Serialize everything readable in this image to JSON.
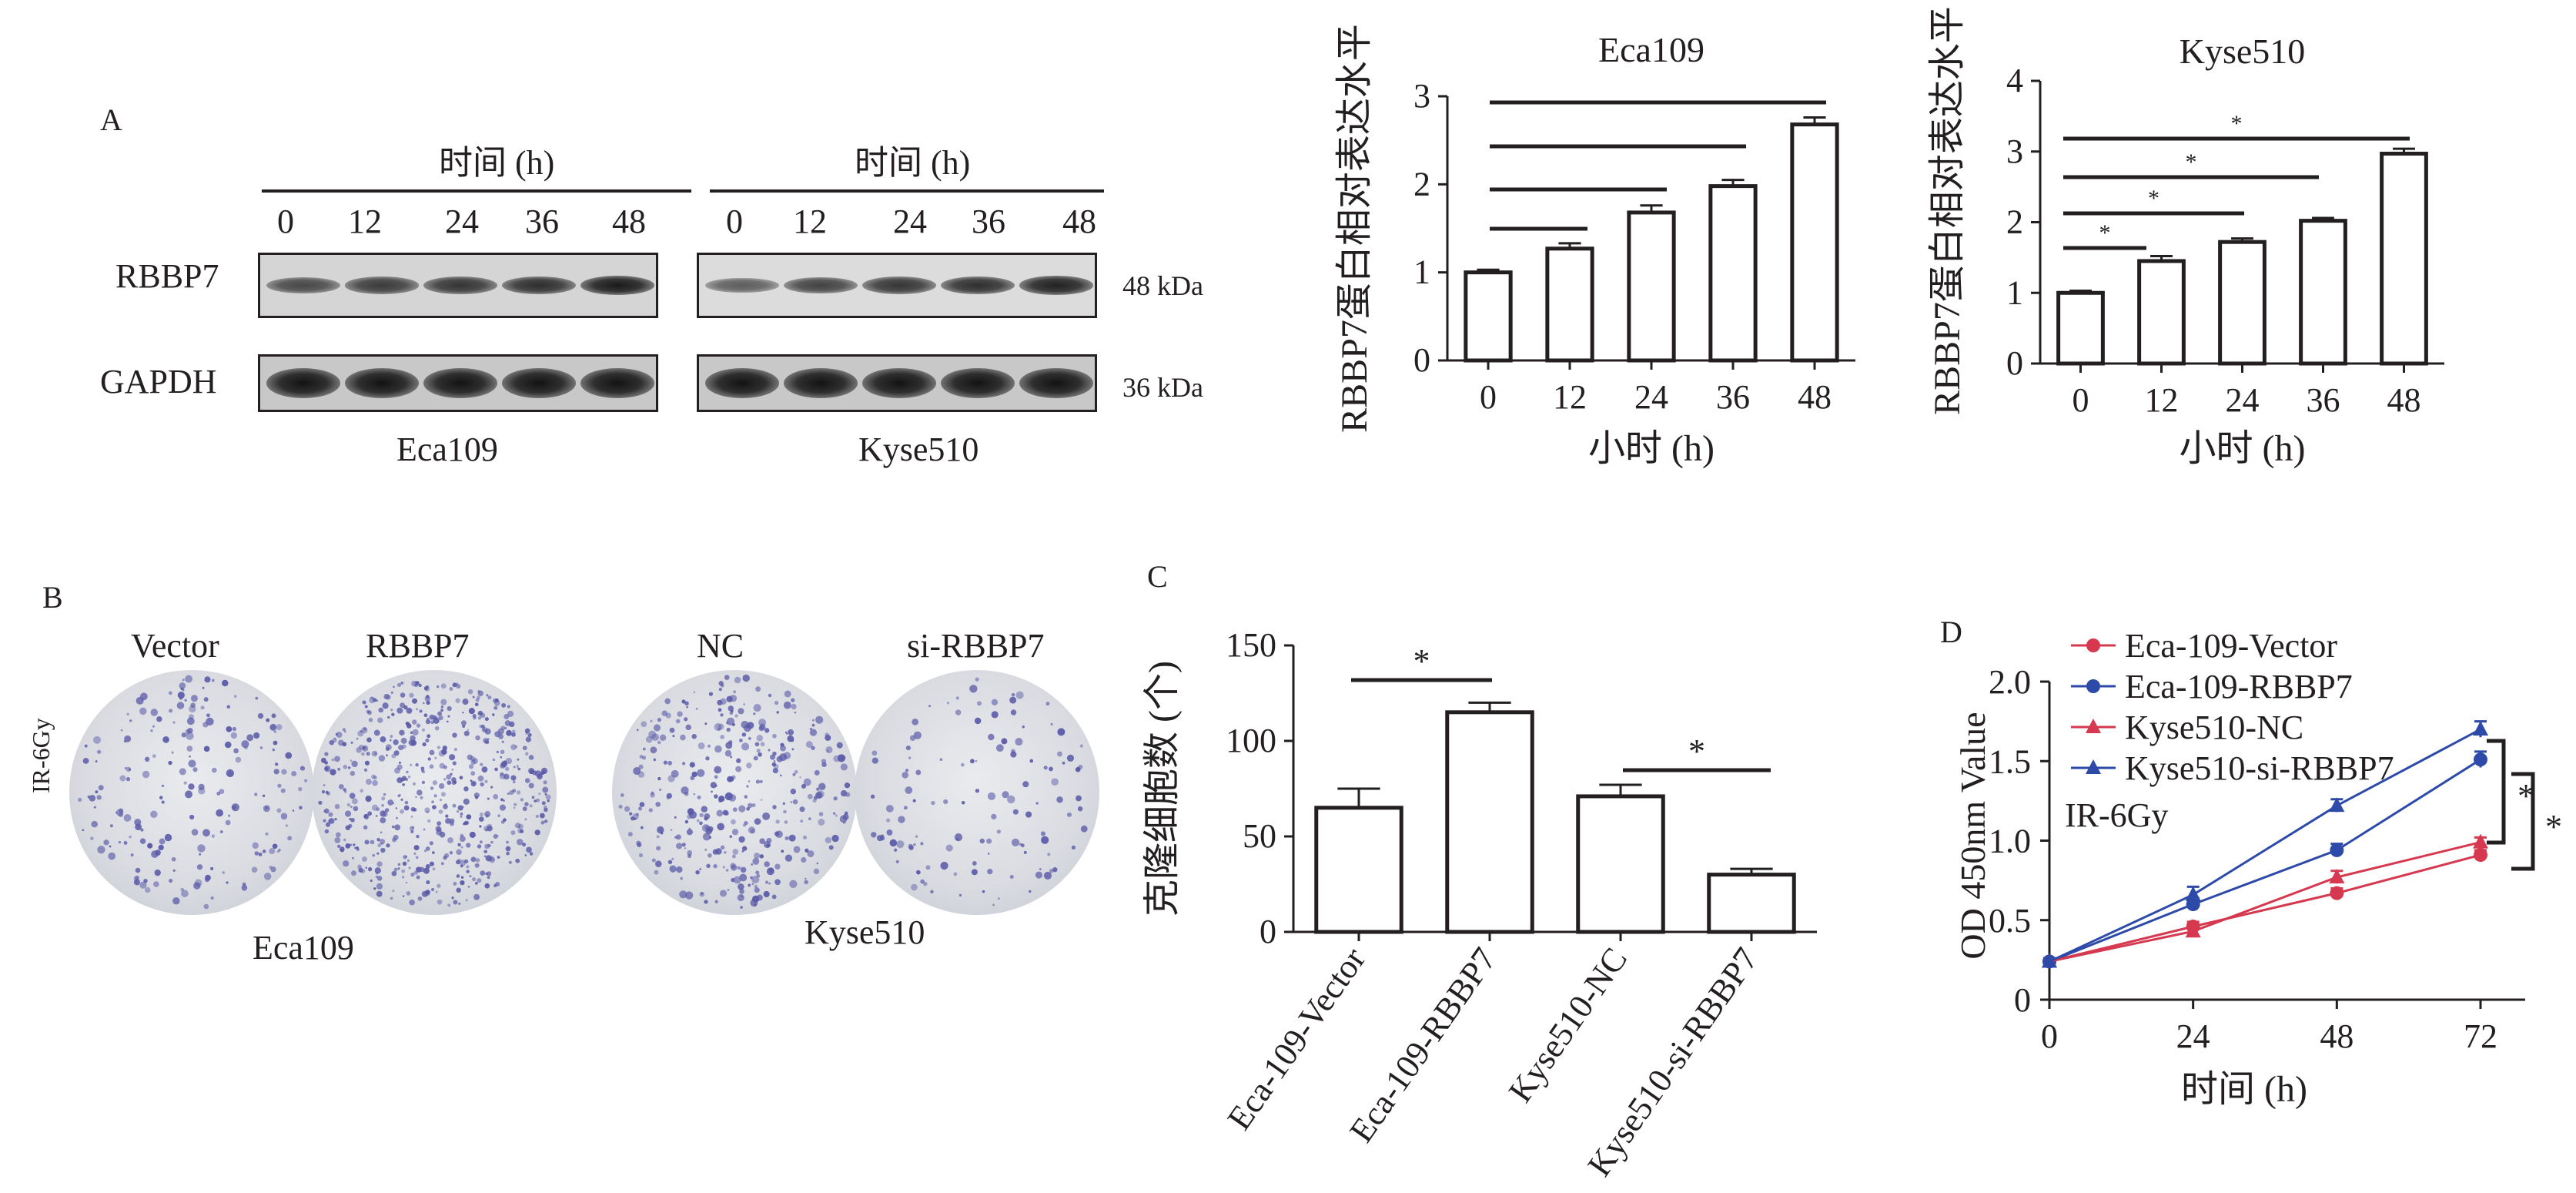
{
  "panel_a": {
    "letter": "A",
    "group_header": "时间 (h)",
    "lanes": [
      "0",
      "12",
      "24",
      "36",
      "48"
    ],
    "proteins": [
      "RBBP7",
      "GAPDH"
    ],
    "weights": [
      "48 kDa",
      "36 kDa"
    ],
    "cell_lines": [
      "Eca109",
      "Kyse510"
    ],
    "band_intensity": {
      "Eca109": {
        "RBBP7": [
          0.55,
          0.65,
          0.7,
          0.75,
          0.9
        ],
        "GAPDH": [
          0.95,
          0.95,
          0.95,
          0.95,
          0.95
        ]
      },
      "Kyse510": {
        "RBBP7": [
          0.4,
          0.6,
          0.7,
          0.75,
          0.85
        ],
        "GAPDH": [
          0.95,
          0.95,
          0.95,
          0.95,
          0.95
        ]
      }
    }
  },
  "panel_b": {
    "letter": "B",
    "side_label": "IR-6Gy",
    "dish_labels": [
      "Vector",
      "RBBP7",
      "NC",
      "si-RBBP7"
    ],
    "cell_lines": [
      "Eca109",
      "Kyse510"
    ],
    "colony_density": [
      0.3,
      1.0,
      0.6,
      0.15
    ],
    "colony_color": "#5a5aa8"
  },
  "panel_c": {
    "letter": "C"
  },
  "panel_d": {
    "letter": "D",
    "inset_label": "IR-6Gy"
  },
  "chart_data": [
    {
      "id": "eca109_bar",
      "type": "bar",
      "title": "Eca109",
      "categories": [
        "0",
        "12",
        "24",
        "36",
        "48"
      ],
      "values": [
        1.0,
        1.27,
        1.68,
        1.98,
        2.68
      ],
      "errors": [
        0.03,
        0.06,
        0.08,
        0.07,
        0.08
      ],
      "xlabel": "小时 (h)",
      "ylabel": "RBBP7蛋白相对表达水平",
      "ylim": [
        0,
        3
      ],
      "yticks": [
        "0",
        "1",
        "2",
        "3"
      ],
      "comparisons": [
        {
          "from": 0,
          "to": 1,
          "mark": ""
        },
        {
          "from": 0,
          "to": 2,
          "mark": ""
        },
        {
          "from": 0,
          "to": 3,
          "mark": ""
        },
        {
          "from": 0,
          "to": 4,
          "mark": ""
        }
      ]
    },
    {
      "id": "kyse510_bar",
      "type": "bar",
      "title": "Kyse510",
      "categories": [
        "0",
        "12",
        "24",
        "36",
        "48"
      ],
      "values": [
        1.0,
        1.45,
        1.72,
        2.02,
        2.97
      ],
      "errors": [
        0.03,
        0.07,
        0.05,
        0.04,
        0.07
      ],
      "xlabel": "小时 (h)",
      "ylabel": "RBBP7蛋白相对表达水平",
      "ylim": [
        0,
        4
      ],
      "yticks": [
        "0",
        "1",
        "2",
        "3",
        "4"
      ],
      "comparisons": [
        {
          "from": 0,
          "to": 1,
          "mark": "*"
        },
        {
          "from": 0,
          "to": 2,
          "mark": "*"
        },
        {
          "from": 0,
          "to": 3,
          "mark": "*"
        },
        {
          "from": 0,
          "to": 4,
          "mark": "*"
        }
      ]
    },
    {
      "id": "colony_bar",
      "type": "bar",
      "categories": [
        "Eca-109-Vector",
        "Eca-109-RBBP7",
        "Kyse510-NC",
        "Kyse510-si-RBBP7"
      ],
      "values": [
        65,
        115,
        71,
        30
      ],
      "errors": [
        10,
        5,
        6,
        3
      ],
      "ylabel": "克隆细胞数 (个)",
      "ylim": [
        0,
        150
      ],
      "yticks": [
        "0",
        "50",
        "100",
        "150"
      ],
      "comparisons": [
        {
          "from": 0,
          "to": 1,
          "mark": "*"
        },
        {
          "from": 2,
          "to": 3,
          "mark": "*"
        }
      ]
    },
    {
      "id": "od_line",
      "type": "line",
      "x": [
        0,
        24,
        48,
        72
      ],
      "xticks": [
        "0",
        "24",
        "48",
        "72"
      ],
      "xlabel": "时间 (h)",
      "ylabel": "OD 450nm Value",
      "ylim": [
        0,
        2.0
      ],
      "yticks": [
        "0",
        "0.5",
        "1.0",
        "1.5",
        "2.0"
      ],
      "legend_position": "top-left",
      "series": [
        {
          "name": "Eca-109-Vector",
          "values": [
            0.24,
            0.46,
            0.67,
            0.91
          ],
          "errors": [
            0.02,
            0.03,
            0.03,
            0.03
          ],
          "color": "#d6394f",
          "marker": "circle"
        },
        {
          "name": "Eca-109-RBBP7",
          "values": [
            0.24,
            0.6,
            0.94,
            1.51
          ],
          "errors": [
            0.02,
            0.04,
            0.04,
            0.05
          ],
          "color": "#2d4aa8",
          "marker": "circle"
        },
        {
          "name": "Kyse510-NC",
          "values": [
            0.24,
            0.43,
            0.77,
            0.99
          ],
          "errors": [
            0.02,
            0.03,
            0.04,
            0.03
          ],
          "color": "#d6394f",
          "marker": "triangle"
        },
        {
          "name": "Kyse510-si-RBBP7",
          "values": [
            0.24,
            0.66,
            1.22,
            1.7
          ],
          "errors": [
            0.02,
            0.05,
            0.04,
            0.05
          ],
          "color": "#2d4aa8",
          "marker": "triangle"
        }
      ],
      "significance": [
        "*",
        "*"
      ]
    }
  ]
}
